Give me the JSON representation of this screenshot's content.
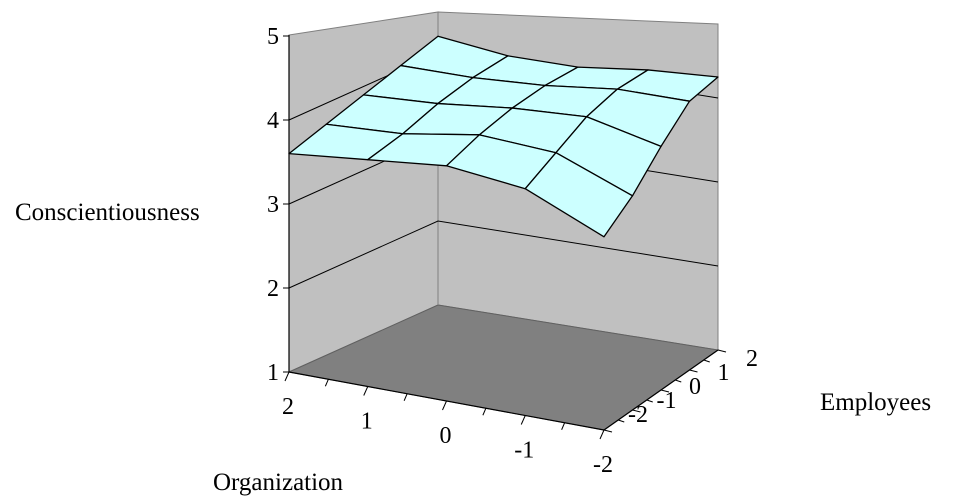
{
  "chart_data": {
    "type": "surface",
    "title": "",
    "zlabel": "Conscientiousness",
    "xlabel": "Organization",
    "ylabel": "Employees",
    "zlim": [
      1,
      5
    ],
    "z_ticks": [
      "1",
      "2",
      "3",
      "4",
      "5"
    ],
    "organization_ticks": [
      "2",
      "1",
      "0",
      "-1",
      "-2"
    ],
    "employees_ticks": [
      "-2",
      "-1",
      "0",
      "1",
      "2"
    ],
    "organization": [
      2,
      1,
      0,
      -1,
      -2
    ],
    "employees": [
      -2,
      -1,
      0,
      1,
      2
    ],
    "z": [
      [
        3.6,
        3.75,
        3.9,
        4.05,
        4.2
      ],
      [
        3.7,
        3.8,
        3.95,
        4.05,
        4.1
      ],
      [
        3.8,
        3.95,
        4.05,
        4.1,
        4.1
      ],
      [
        3.7,
        3.9,
        4.1,
        4.2,
        4.2
      ],
      [
        3.3,
        3.55,
        3.9,
        4.2,
        4.25
      ]
    ],
    "colors": {
      "walls": "#c0c0c0",
      "floor": "#808080",
      "surface_top": "#ffffcc",
      "surface_underside": "#ccffff",
      "gridlines": "#000000"
    }
  }
}
